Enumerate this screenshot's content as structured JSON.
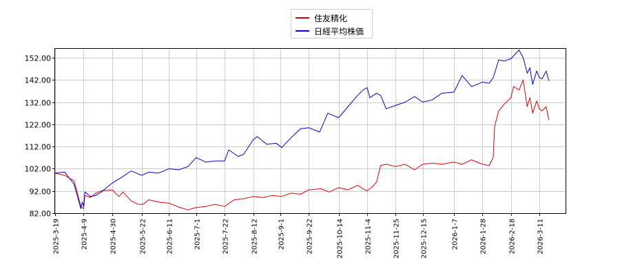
{
  "chart_data": {
    "type": "line",
    "title": "",
    "xlabel": "",
    "ylabel": "",
    "ylim": [
      82,
      156
    ],
    "yticks": [
      82,
      92,
      102,
      112,
      122,
      132,
      142,
      152
    ],
    "ytick_labels": [
      "82.00",
      "92.00",
      "102.00",
      "112.00",
      "122.00",
      "132.00",
      "142.00",
      "152.00"
    ],
    "xticks": [
      "2025-3-19",
      "2025-4-9",
      "2025-4-30",
      "2025-5-22",
      "2025-6-11",
      "2025-7-1",
      "2025-7-22",
      "2025-8-12",
      "2025-9-1",
      "2025-9-22",
      "2025-10-14",
      "2025-11-4",
      "2025-11-25",
      "2025-12-15",
      "2026-1-7",
      "2026-1-28",
      "2026-2-18",
      "2026-3-11"
    ],
    "grid": true,
    "legend_position": "top-center",
    "series": [
      {
        "name": "住友精化",
        "color": "#dd0000",
        "points": [
          [
            "2025-3-19",
            100.0
          ],
          [
            "2025-3-26",
            99.0
          ],
          [
            "2025-4-2",
            96.5
          ],
          [
            "2025-4-7",
            85.0
          ],
          [
            "2025-4-9",
            84.0
          ],
          [
            "2025-4-10",
            90.0
          ],
          [
            "2025-4-14",
            89.0
          ],
          [
            "2025-4-18",
            91.0
          ],
          [
            "2025-4-22",
            92.0
          ],
          [
            "2025-4-30",
            92.5
          ],
          [
            "2025-5-5",
            89.5
          ],
          [
            "2025-5-8",
            91.5
          ],
          [
            "2025-5-14",
            87.5
          ],
          [
            "2025-5-19",
            86.0
          ],
          [
            "2025-5-23",
            86.0
          ],
          [
            "2025-5-27",
            88.0
          ],
          [
            "2025-6-3",
            87.0
          ],
          [
            "2025-6-11",
            86.5
          ],
          [
            "2025-6-19",
            84.5
          ],
          [
            "2025-6-25",
            83.5
          ],
          [
            "2025-7-1",
            84.5
          ],
          [
            "2025-7-8",
            85.0
          ],
          [
            "2025-7-15",
            86.0
          ],
          [
            "2025-7-22",
            85.0
          ],
          [
            "2025-7-29",
            88.0
          ],
          [
            "2025-8-5",
            88.5
          ],
          [
            "2025-8-12",
            89.5
          ],
          [
            "2025-8-19",
            89.0
          ],
          [
            "2025-8-26",
            90.0
          ],
          [
            "2025-9-2",
            89.5
          ],
          [
            "2025-9-9",
            91.0
          ],
          [
            "2025-9-16",
            90.5
          ],
          [
            "2025-9-22",
            92.5
          ],
          [
            "2025-10-1",
            93.0
          ],
          [
            "2025-10-7",
            91.5
          ],
          [
            "2025-10-14",
            93.5
          ],
          [
            "2025-10-21",
            92.5
          ],
          [
            "2025-10-28",
            94.5
          ],
          [
            "2025-11-1",
            93.0
          ],
          [
            "2025-11-4",
            92.0
          ],
          [
            "2025-11-8",
            94.0
          ],
          [
            "2025-11-11",
            96.0
          ],
          [
            "2025-11-14",
            103.5
          ],
          [
            "2025-11-18",
            104.0
          ],
          [
            "2025-11-25",
            103.0
          ],
          [
            "2025-12-2",
            104.0
          ],
          [
            "2025-12-9",
            101.5
          ],
          [
            "2025-12-15",
            104.0
          ],
          [
            "2025-12-22",
            104.5
          ],
          [
            "2025-12-29",
            104.0
          ],
          [
            "2026-1-7",
            105.0
          ],
          [
            "2026-1-13",
            104.0
          ],
          [
            "2026-1-20",
            106.0
          ],
          [
            "2026-1-28",
            104.0
          ],
          [
            "2026-2-2",
            103.5
          ],
          [
            "2026-2-5",
            107.0
          ],
          [
            "2026-2-6",
            121.0
          ],
          [
            "2026-2-9",
            128.0
          ],
          [
            "2026-2-13",
            131.0
          ],
          [
            "2026-2-18",
            134.0
          ],
          [
            "2026-2-20",
            139.0
          ],
          [
            "2026-2-24",
            137.5
          ],
          [
            "2026-2-27",
            142.0
          ],
          [
            "2026-3-2",
            130.0
          ],
          [
            "2026-3-4",
            134.0
          ],
          [
            "2026-3-6",
            127.0
          ],
          [
            "2026-3-9",
            132.5
          ],
          [
            "2026-3-11",
            129.0
          ],
          [
            "2026-3-13",
            128.0
          ],
          [
            "2026-3-16",
            130.0
          ],
          [
            "2026-3-18",
            124.0
          ]
        ]
      },
      {
        "name": "日経平均株価",
        "color": "#0000cc",
        "points": [
          [
            "2025-3-19",
            100.0
          ],
          [
            "2025-3-26",
            100.5
          ],
          [
            "2025-4-2",
            95.0
          ],
          [
            "2025-4-7",
            84.0
          ],
          [
            "2025-4-8",
            87.0
          ],
          [
            "2025-4-9",
            85.0
          ],
          [
            "2025-4-10",
            91.5
          ],
          [
            "2025-4-14",
            89.5
          ],
          [
            "2025-4-18",
            90.0
          ],
          [
            "2025-4-22",
            91.5
          ],
          [
            "2025-4-30",
            95.5
          ],
          [
            "2025-5-8",
            98.5
          ],
          [
            "2025-5-14",
            101.0
          ],
          [
            "2025-5-22",
            99.0
          ],
          [
            "2025-5-27",
            100.5
          ],
          [
            "2025-6-3",
            100.0
          ],
          [
            "2025-6-11",
            102.0
          ],
          [
            "2025-6-18",
            101.5
          ],
          [
            "2025-6-25",
            103.0
          ],
          [
            "2025-7-1",
            107.0
          ],
          [
            "2025-7-8",
            105.0
          ],
          [
            "2025-7-15",
            105.5
          ],
          [
            "2025-7-22",
            105.5
          ],
          [
            "2025-7-25",
            110.5
          ],
          [
            "2025-8-1",
            107.5
          ],
          [
            "2025-8-5",
            108.5
          ],
          [
            "2025-8-12",
            115.0
          ],
          [
            "2025-8-15",
            116.5
          ],
          [
            "2025-8-22",
            113.0
          ],
          [
            "2025-8-29",
            113.5
          ],
          [
            "2025-9-2",
            111.5
          ],
          [
            "2025-9-9",
            116.0
          ],
          [
            "2025-9-16",
            120.0
          ],
          [
            "2025-9-22",
            120.5
          ],
          [
            "2025-9-30",
            118.5
          ],
          [
            "2025-10-6",
            127.0
          ],
          [
            "2025-10-14",
            125.0
          ],
          [
            "2025-10-21",
            130.0
          ],
          [
            "2025-10-28",
            135.0
          ],
          [
            "2025-11-1",
            137.5
          ],
          [
            "2025-11-4",
            138.5
          ],
          [
            "2025-11-6",
            134.0
          ],
          [
            "2025-11-11",
            136.0
          ],
          [
            "2025-11-14",
            135.0
          ],
          [
            "2025-11-18",
            129.0
          ],
          [
            "2025-11-25",
            130.5
          ],
          [
            "2025-12-2",
            132.0
          ],
          [
            "2025-12-9",
            134.5
          ],
          [
            "2025-12-15",
            132.0
          ],
          [
            "2025-12-22",
            133.0
          ],
          [
            "2025-12-29",
            136.0
          ],
          [
            "2026-1-7",
            136.5
          ],
          [
            "2026-1-13",
            144.0
          ],
          [
            "2026-1-20",
            139.0
          ],
          [
            "2026-1-28",
            141.0
          ],
          [
            "2026-2-2",
            140.5
          ],
          [
            "2026-2-5",
            143.0
          ],
          [
            "2026-2-9",
            151.0
          ],
          [
            "2026-2-13",
            150.5
          ],
          [
            "2026-2-18",
            151.5
          ],
          [
            "2026-2-24",
            155.5
          ],
          [
            "2026-2-27",
            152.0
          ],
          [
            "2026-3-2",
            145.0
          ],
          [
            "2026-3-4",
            147.5
          ],
          [
            "2026-3-6",
            140.0
          ],
          [
            "2026-3-9",
            146.0
          ],
          [
            "2026-3-11",
            143.0
          ],
          [
            "2026-3-13",
            142.5
          ],
          [
            "2026-3-16",
            146.0
          ],
          [
            "2026-3-18",
            141.5
          ]
        ]
      }
    ]
  }
}
